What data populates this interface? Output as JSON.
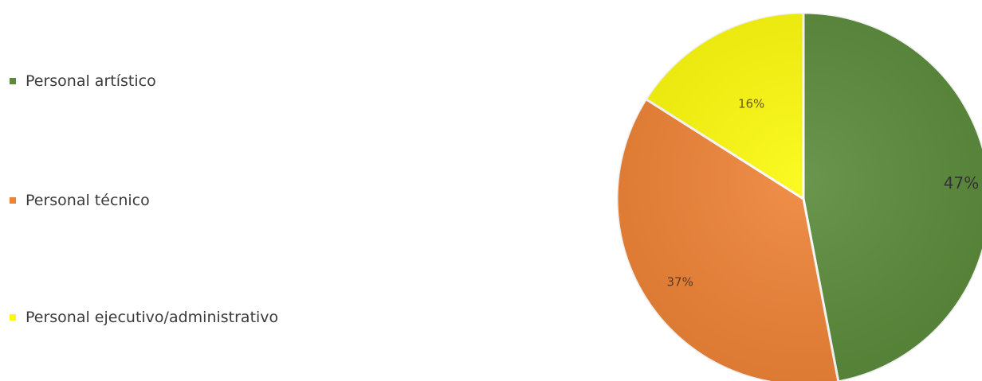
{
  "chart_data": {
    "type": "pie",
    "title": "",
    "categories": [
      "Personal artístico",
      "Personal técnico",
      "Personal ejecutivo/administrativo"
    ],
    "values": [
      47,
      37,
      16
    ],
    "labels": [
      "47%",
      "37%",
      "16%"
    ],
    "colors": [
      "#5a8a3a",
      "#ee8336",
      "#fbf90b"
    ],
    "legend_position": "left"
  }
}
